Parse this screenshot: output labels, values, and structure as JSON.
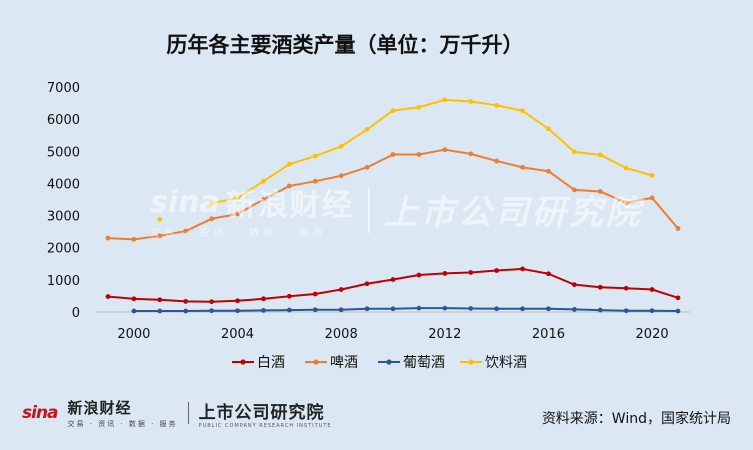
{
  "chart_data": {
    "type": "line",
    "title": "历年各主要酒类产量（单位：万千升）",
    "xlabel": "",
    "ylabel": "",
    "x": [
      1999,
      2000,
      2001,
      2002,
      2003,
      2004,
      2005,
      2006,
      2007,
      2008,
      2009,
      2010,
      2011,
      2012,
      2013,
      2014,
      2015,
      2016,
      2017,
      2018,
      2019,
      2020,
      2021
    ],
    "xticks": [
      "2000",
      "2004",
      "2008",
      "2012",
      "2016",
      "2020"
    ],
    "yticks": [
      "0",
      "1000",
      "2000",
      "3000",
      "4000",
      "5000",
      "6000",
      "7000"
    ],
    "ylim": [
      0,
      7000
    ],
    "legend_position": "bottom",
    "series": [
      {
        "name": "白酒",
        "color": "#c00000",
        "values": [
          480,
          410,
          380,
          330,
          320,
          350,
          410,
          490,
          560,
          700,
          880,
          1010,
          1150,
          1200,
          1230,
          1290,
          1340,
          1190,
          850,
          770,
          740,
          700,
          440
        ]
      },
      {
        "name": "啤酒",
        "color": "#ed7d31",
        "values": [
          2300,
          2260,
          2370,
          2520,
          2900,
          3050,
          3500,
          3920,
          4070,
          4240,
          4500,
          4900,
          4900,
          5050,
          4920,
          4700,
          4500,
          4380,
          3800,
          3750,
          3400,
          3550,
          2600
        ]
      },
      {
        "name": "葡萄酒",
        "color": "#2f5597",
        "values": [
          null,
          30,
          30,
          30,
          40,
          40,
          50,
          60,
          70,
          70,
          100,
          100,
          120,
          120,
          110,
          100,
          100,
          100,
          80,
          60,
          40,
          40,
          30
        ]
      },
      {
        "name": "饮料酒",
        "color": "#ffc000",
        "values": [
          null,
          null,
          2880,
          null,
          3380,
          3550,
          4070,
          4600,
          4850,
          5150,
          5680,
          6270,
          6370,
          6600,
          6550,
          6430,
          6260,
          5700,
          4980,
          4890,
          4480,
          4250,
          null
        ]
      }
    ]
  },
  "watermark": {
    "logo": "sina",
    "name": "新浪财经",
    "sub": "交易 · 资讯 · 数据 · 服务",
    "institute": "上市公司研究院"
  },
  "footer": {
    "logo": "sina",
    "brand": "新浪财经",
    "brand_sub": "交易 · 资讯 · 数据 · 服务",
    "institute": "上市公司研究院",
    "institute_sub": "PUBLIC COMPANY RESEARCH INSTITUTE",
    "source": "资料来源：Wind，国家统计局"
  }
}
